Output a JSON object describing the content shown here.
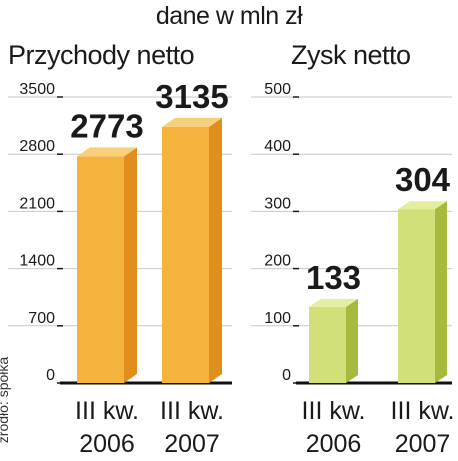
{
  "unit_label": "dane w mln zł",
  "source_note": "źródło: spółka",
  "colors": {
    "left_front": "#f3b33d",
    "left_side": "#e08f1e",
    "left_top": "#f8d07a",
    "right_front": "#d3e07a",
    "right_side": "#a8ba3e",
    "right_top": "#e4ee9e",
    "grid": "#c8c8c8",
    "text": "#1a1a1a"
  },
  "chart_data": [
    {
      "type": "bar",
      "title": "Przychody netto",
      "categories": [
        "III kw. 2006",
        "III kw. 2007"
      ],
      "category_lines": [
        [
          "III kw.",
          "2006"
        ],
        [
          "III kw.",
          "2007"
        ]
      ],
      "values": [
        2773,
        3135
      ],
      "value_labels": [
        "2773",
        "3135"
      ],
      "ylim": [
        0,
        3500
      ],
      "yticks": [
        0,
        700,
        1400,
        2100,
        2800,
        3500
      ],
      "grid": true
    },
    {
      "type": "bar",
      "title": "Zysk netto",
      "categories": [
        "III kw. 2006",
        "III kw. 2007"
      ],
      "category_lines": [
        [
          "III kw.",
          "2006"
        ],
        [
          "III kw.",
          "2007"
        ]
      ],
      "values": [
        133,
        304
      ],
      "value_labels": [
        "133",
        "304"
      ],
      "ylim": [
        0,
        500
      ],
      "yticks": [
        0,
        100,
        200,
        300,
        400,
        500
      ],
      "grid": true
    }
  ]
}
